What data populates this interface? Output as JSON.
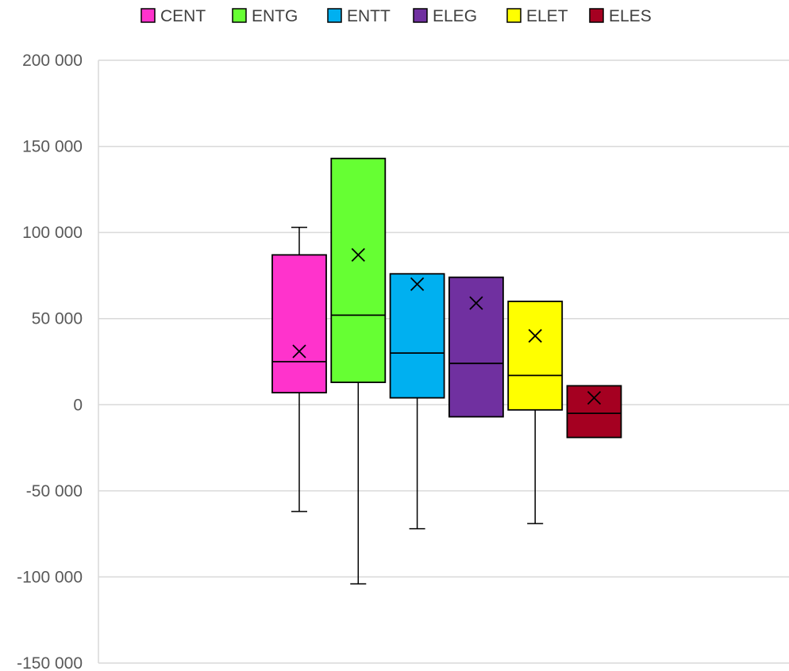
{
  "chart_data": {
    "type": "boxplot",
    "ylim": [
      -150000,
      200000
    ],
    "y_ticks": [
      200000,
      150000,
      100000,
      50000,
      0,
      -50000,
      -100000,
      -150000
    ],
    "y_tick_labels": [
      "200 000",
      "150 000",
      "100 000",
      "50 000",
      "0",
      "-50 000",
      "-100 000",
      "-150 000"
    ],
    "grid": true,
    "legend_position": "top",
    "series": [
      {
        "name": "CENT",
        "color": "#FF33CC",
        "min": -62000,
        "q1": 7000,
        "median": 25000,
        "q3": 87000,
        "max": 103000,
        "mean": 31000
      },
      {
        "name": "ENTG",
        "color": "#66FF33",
        "min": -104000,
        "q1": 13000,
        "median": 52000,
        "q3": 143000,
        "max": 143000,
        "mean": 87000
      },
      {
        "name": "ENTT",
        "color": "#00B0F0",
        "min": -72000,
        "q1": 4000,
        "median": 30000,
        "q3": 76000,
        "max": 76000,
        "mean": 70000
      },
      {
        "name": "ELEG",
        "color": "#7030A0",
        "min": -7000,
        "q1": -7000,
        "median": 24000,
        "q3": 74000,
        "max": 74000,
        "mean": 59000
      },
      {
        "name": "ELET",
        "color": "#FFFF00",
        "min": -69000,
        "q1": -3000,
        "median": 17000,
        "q3": 60000,
        "max": 60000,
        "mean": 40000
      },
      {
        "name": "ELES",
        "color": "#A50021",
        "min": -19000,
        "q1": -19000,
        "median": -5000,
        "q3": 11000,
        "max": 11000,
        "mean": 4000
      }
    ]
  }
}
